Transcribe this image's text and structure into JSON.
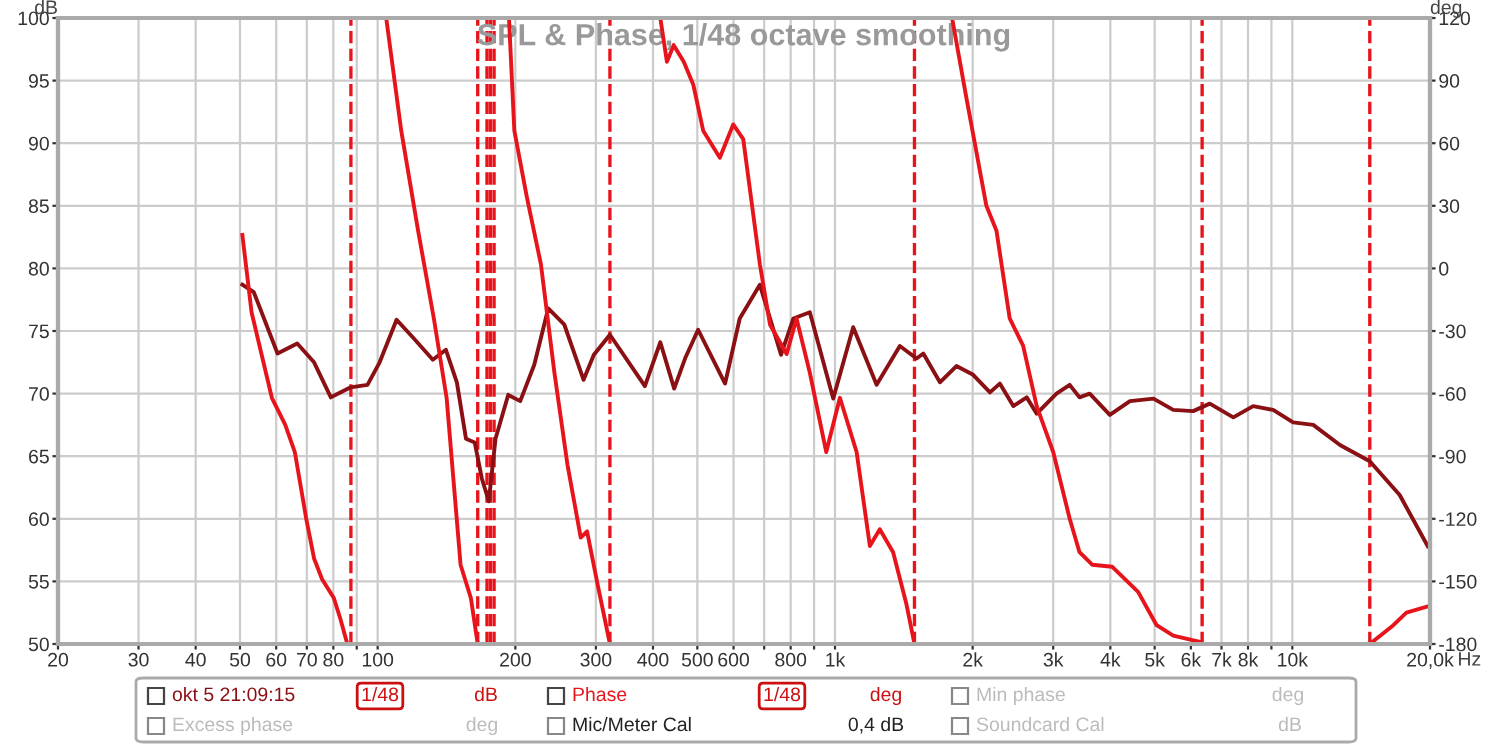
{
  "chart_data": {
    "type": "line",
    "title": "SPL & Phase, 1/48 octave smoothing",
    "xlabel": "Hz",
    "ylabel": "dB",
    "y2label": "deg",
    "log": "x",
    "grid": true,
    "legend": "bottom",
    "marker": "none",
    "line_style": "solid",
    "xlim": [
      20,
      20000
    ],
    "xticks": [
      20,
      30,
      40,
      50,
      60,
      70,
      80,
      {
        "value": 90,
        "label": null
      },
      100,
      200,
      300,
      400,
      500,
      600,
      {
        "value": 700,
        "label": null
      },
      800,
      {
        "value": 900,
        "label": null
      },
      {
        "value": 1000,
        "label": "1k"
      },
      {
        "value": 2000,
        "label": "2k"
      },
      {
        "value": 3000,
        "label": "3k"
      },
      {
        "value": 4000,
        "label": "4k"
      },
      {
        "value": 5000,
        "label": "5k"
      },
      {
        "value": 6000,
        "label": "6k"
      },
      {
        "value": 7000,
        "label": "7k"
      },
      {
        "value": 8000,
        "label": "8k"
      },
      {
        "value": 9000,
        "label": null
      },
      {
        "value": 10000,
        "label": "10k"
      },
      {
        "value": 20000,
        "label": "20,0k"
      }
    ],
    "ylim": [
      50,
      100
    ],
    "yticks": [
      50,
      55,
      60,
      65,
      70,
      75,
      80,
      85,
      90,
      95,
      100
    ],
    "y2lim": [
      -180,
      120
    ],
    "y2ticks": [
      -180,
      -150,
      -120,
      -90,
      -60,
      -30,
      0,
      30,
      60,
      90,
      120
    ],
    "series": [
      {
        "name": "okt 5 21:09:15",
        "color": "#8b1014",
        "axis": "y",
        "x": [
          50.6,
          53.6,
          60.4,
          66.7,
          72.6,
          79,
          87.3,
          95,
          101,
          110,
          120,
          132,
          141,
          149,
          156,
          163,
          169,
          175,
          181,
          193,
          205,
          220,
          236,
          256,
          282,
          297,
          322,
          357,
          384,
          415,
          445,
          470,
          502,
          545,
          575,
          619,
          685,
          762,
          811,
          881,
          991,
          1096,
          1233,
          1386,
          1508,
          1560,
          1696,
          1843,
          2005,
          2182,
          2293,
          2454,
          2625,
          2761,
          3050,
          3260,
          3425,
          3605,
          3990,
          4415,
          4970,
          5490,
          6070,
          6600,
          7430,
          8210,
          9080,
          10040,
          11110,
          12710,
          14770,
          17170,
          19780
        ],
        "values": [
          78.7,
          78.1,
          73.2,
          74.0,
          72.5,
          69.7,
          70.5,
          70.7,
          72.5,
          75.9,
          74.4,
          72.7,
          73.5,
          70.9,
          66.4,
          66.1,
          63.2,
          61.4,
          66.4,
          69.9,
          69.4,
          72.3,
          76.8,
          75.5,
          71.1,
          73.1,
          74.7,
          72.3,
          70.6,
          74.1,
          70.4,
          72.8,
          75.1,
          72.5,
          70.8,
          76.0,
          78.7,
          73.1,
          76.0,
          76.5,
          69.6,
          75.3,
          70.7,
          73.8,
          72.8,
          73.2,
          70.9,
          72.2,
          71.5,
          70.1,
          70.8,
          69.0,
          69.7,
          68.4,
          70.0,
          70.7,
          69.7,
          70.0,
          68.3,
          69.4,
          69.6,
          68.7,
          68.6,
          69.2,
          68.1,
          69.0,
          68.7,
          67.7,
          67.5,
          65.9,
          64.6,
          61.9,
          57.8
        ]
      },
      {
        "name": "Phase",
        "color": "#e8141c",
        "axis": "y2",
        "x": [
          50.6,
          53,
          58.7,
          62.8,
          65.9,
          69.8,
          72.6,
          75.6,
          80.2,
          82.9,
          85.6,
          86,
          104.4,
          112.6,
          122.6,
          132.7,
          141.5,
          151.8,
          159.9,
          165.5,
          170,
          193.7,
          199,
          212,
          227.5,
          243.5,
          260,
          278,
          287,
          303,
          322,
          350,
          415,
          429,
          444,
          467,
          490,
          515,
          560,
          599,
          630,
          685,
          721,
          784,
          824,
          881,
          957,
          1025,
          1115,
          1192,
          1253,
          1340,
          1433,
          1492,
          1600,
          1803,
          1937,
          2143,
          2255,
          2410,
          2578,
          2761,
          3000,
          3260,
          3425,
          3650,
          4040,
          4600,
          5050,
          5490,
          6280,
          10000,
          14770,
          16630,
          17760,
          19780
        ],
        "values": [
          16,
          -21,
          -62,
          -75,
          -88,
          -120,
          -139,
          -149,
          -158,
          -168,
          -179,
          null,
          120,
          66,
          18,
          -24,
          -62,
          -142,
          -158,
          -180,
          null,
          120,
          66,
          34,
          2,
          -50,
          -94,
          -129,
          -126,
          -152,
          -180,
          null,
          120,
          99,
          107,
          99,
          88,
          66,
          53,
          69,
          62,
          2,
          -27,
          -41,
          -24,
          -50,
          -88,
          -62,
          -88,
          -133,
          -125,
          -136,
          -161,
          -180,
          null,
          120,
          82,
          30,
          18,
          -24,
          -37,
          -66,
          -88,
          -120,
          -136,
          -142,
          -143,
          -155,
          -171,
          -176,
          -179,
          null,
          -180,
          -171,
          -165,
          -162
        ]
      }
    ],
    "ref_lines": [
      {
        "axis": "x",
        "value": 87.4,
        "color": "#e8141c",
        "line_style": "dashed"
      },
      {
        "axis": "x",
        "value": 165.5,
        "color": "#e8141c",
        "line_style": "dashed"
      },
      {
        "axis": "x",
        "value": 173.4,
        "color": "#e8141c",
        "line_style": "dashed"
      },
      {
        "axis": "x",
        "value": 176.4,
        "color": "#e8141c",
        "line_style": "dashed"
      },
      {
        "axis": "x",
        "value": 179.7,
        "color": "#e8141c",
        "line_style": "dashed"
      },
      {
        "axis": "x",
        "value": 322,
        "color": "#e8141c",
        "line_style": "dashed"
      },
      {
        "axis": "x",
        "value": 1492,
        "color": "#e8141c",
        "line_style": "dashed"
      },
      {
        "axis": "x",
        "value": 6350,
        "color": "#e8141c",
        "line_style": "dashed"
      },
      {
        "axis": "x",
        "value": 14770,
        "color": "#e8141c",
        "line_style": "dashed"
      }
    ],
    "annotations": [
      "1/48",
      "dB",
      "1/48",
      "deg",
      "Min phase",
      "deg",
      "Excess phase",
      "deg",
      "Mic/Meter Cal",
      "0,4 dB",
      "Soundcard Cal",
      "dB"
    ]
  }
}
